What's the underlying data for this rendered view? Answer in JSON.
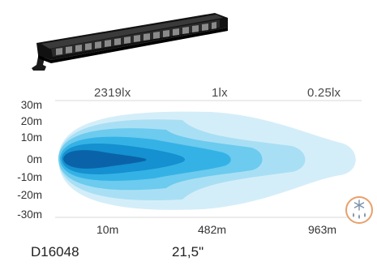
{
  "lux_labels": [
    "2319lx",
    "1lx",
    "0.25lx"
  ],
  "y_labels": [
    "30m",
    "20m",
    "10m",
    "0m",
    "-10m",
    "-20m",
    "-30m"
  ],
  "x_labels": [
    "10m",
    "482m",
    "963m"
  ],
  "footer": {
    "code": "D16048",
    "size": "21,5\""
  },
  "icons": {
    "product": "light-bar-image",
    "weather": "snow-rain-weather-icon"
  },
  "colors": {
    "beam_outer": "#d4eef9",
    "beam_2": "#a9dff4",
    "beam_3": "#6ccbee",
    "beam_4": "#35b2e5",
    "beam_5": "#1590d0",
    "beam_core": "#0a63a8",
    "badge_ring": "#e8a06c"
  }
}
